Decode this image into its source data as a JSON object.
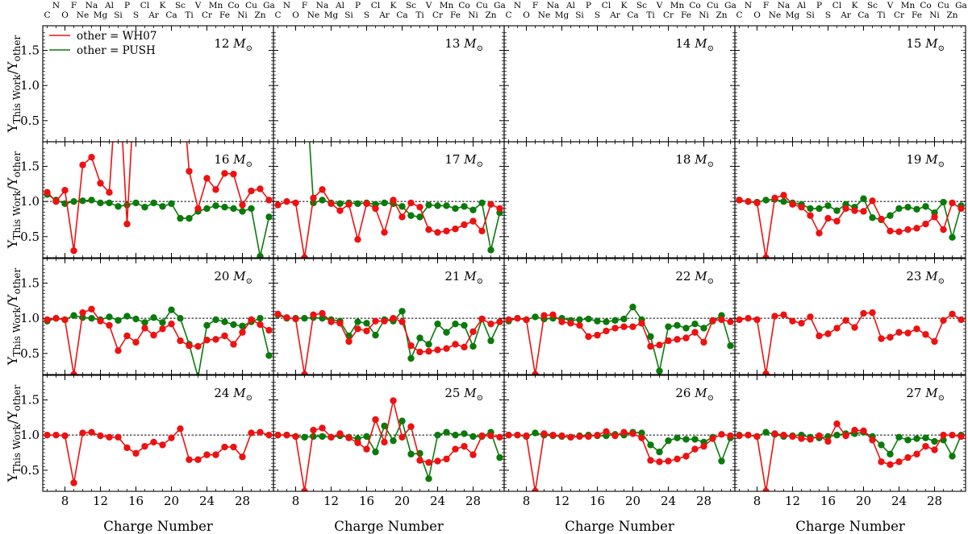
{
  "chart_data": {
    "type": "line",
    "xlabel": "Charge Number",
    "ylabel": "Y_This Work / Y_other",
    "xlim": [
      5.5,
      31.5
    ],
    "ylim": [
      0.2,
      1.85
    ],
    "xticks": [
      8,
      12,
      16,
      20,
      24,
      28
    ],
    "yticks": [
      0.5,
      1.0,
      1.5
    ],
    "xtick_labels": [
      "8",
      "12",
      "16",
      "20",
      "24",
      "28"
    ],
    "ytick_labels": [
      "0.5",
      "1.0",
      "1.5"
    ],
    "reference_line": 1.0,
    "elements_even": [
      "C",
      "O",
      "Ne",
      "Mg",
      "Si",
      "S",
      "Ar",
      "Ca",
      "Ti",
      "Cr",
      "Fe",
      "Ni",
      "Zn"
    ],
    "elements_odd": [
      "N",
      "F",
      "Na",
      "Al",
      "P",
      "Cl",
      "K",
      "Sc",
      "V",
      "Mn",
      "Co",
      "Cu",
      "Ga"
    ],
    "legend": {
      "position": "top-left of first panel",
      "entries": [
        {
          "label": "other = WH07",
          "color": "#ee1111"
        },
        {
          "label": "other = PUSH",
          "color": "#0a7a0a"
        }
      ]
    },
    "colors": {
      "WH07": "#ee1111",
      "PUSH": "#0a7a0a"
    },
    "z": [
      6,
      7,
      8,
      9,
      10,
      11,
      12,
      13,
      14,
      15,
      16,
      17,
      18,
      19,
      20,
      21,
      22,
      23,
      24,
      25,
      26,
      27,
      28,
      29,
      30,
      31
    ],
    "panels": [
      {
        "label": "12",
        "unit": "M_⊙",
        "wh07": [],
        "push": []
      },
      {
        "label": "13",
        "unit": "M_⊙",
        "wh07": [],
        "push": []
      },
      {
        "label": "14",
        "unit": "M_⊙",
        "wh07": [],
        "push": []
      },
      {
        "label": "15",
        "unit": "M_⊙",
        "wh07": [],
        "push": []
      },
      {
        "label": "16",
        "unit": "M_⊙",
        "wh07": [
          1.13,
          1.0,
          1.16,
          0.3,
          1.52,
          1.63,
          1.26,
          1.13,
          3.0,
          0.68,
          3.0,
          null,
          null,
          null,
          null,
          3.0,
          1.43,
          0.9,
          1.33,
          1.17,
          1.4,
          1.39,
          0.95,
          1.15,
          1.18,
          1.02
        ],
        "push": [
          1.1,
          1.02,
          0.97,
          1.0,
          1.01,
          1.02,
          0.98,
          0.98,
          0.93,
          0.95,
          0.98,
          0.92,
          0.98,
          0.93,
          0.97,
          0.76,
          0.76,
          0.86,
          0.9,
          0.94,
          0.92,
          0.9,
          0.86,
          0.9,
          0.22,
          0.78
        ]
      },
      {
        "label": "17",
        "unit": "M_⊙",
        "wh07": [
          0.95,
          1.0,
          0.98,
          0.2,
          1.05,
          1.17,
          0.97,
          0.87,
          0.96,
          0.46,
          0.97,
          0.9,
          0.56,
          1.02,
          0.78,
          0.98,
          0.92,
          0.6,
          0.56,
          0.58,
          0.61,
          0.67,
          0.72,
          0.58,
          0.96,
          0.9
        ],
        "push": [
          null,
          null,
          null,
          3.0,
          0.98,
          1.02,
          0.98,
          0.97,
          0.98,
          0.97,
          0.98,
          0.96,
          0.98,
          0.97,
          0.93,
          0.8,
          0.78,
          0.95,
          0.94,
          0.94,
          0.9,
          0.93,
          0.88,
          0.98,
          0.31,
          0.84
        ]
      },
      {
        "label": "18",
        "unit": "M_⊙",
        "wh07": [],
        "push": []
      },
      {
        "label": "19",
        "unit": "M_⊙",
        "wh07": [
          1.02,
          1.0,
          0.98,
          0.2,
          1.05,
          1.09,
          0.96,
          0.92,
          0.8,
          0.55,
          0.76,
          0.72,
          0.9,
          0.87,
          0.86,
          1.01,
          0.75,
          0.58,
          0.57,
          0.6,
          0.62,
          0.68,
          0.78,
          0.6,
          0.98,
          0.9
        ],
        "push": [
          1.02,
          1.0,
          0.99,
          1.02,
          1.03,
          1.0,
          0.98,
          0.96,
          0.9,
          0.9,
          0.94,
          0.87,
          0.96,
          0.92,
          1.04,
          0.77,
          0.74,
          0.8,
          0.9,
          0.92,
          0.89,
          0.93,
          0.84,
          0.99,
          0.49,
          0.94
        ]
      },
      {
        "label": "20",
        "unit": "M_⊙",
        "wh07": [
          0.98,
          1.0,
          0.98,
          0.2,
          1.08,
          1.13,
          0.96,
          0.9,
          0.54,
          0.75,
          0.66,
          0.86,
          0.76,
          0.85,
          0.92,
          0.68,
          0.61,
          0.6,
          0.69,
          0.7,
          0.75,
          0.63,
          0.8,
          0.98,
          0.91,
          0.83
        ],
        "push": [
          0.96,
          1.0,
          0.98,
          1.04,
          1.01,
          1.0,
          0.98,
          1.02,
          0.97,
          1.03,
          0.99,
          0.94,
          1.01,
          0.94,
          1.12,
          1.0,
          0.63,
          0.16,
          0.9,
          0.98,
          0.95,
          0.91,
          0.89,
          0.95,
          1.0,
          0.47
        ]
      },
      {
        "label": "21",
        "unit": "M_⊙",
        "wh07": [
          1.06,
          1.01,
          0.99,
          0.2,
          1.05,
          1.07,
          0.95,
          0.93,
          0.67,
          0.85,
          0.82,
          0.96,
          0.96,
          1.0,
          0.95,
          0.61,
          0.52,
          0.53,
          0.55,
          0.57,
          0.63,
          0.59,
          0.81,
          0.99,
          0.92,
          0.95
        ],
        "push": [
          1.05,
          1.0,
          1.0,
          1.0,
          1.01,
          1.0,
          0.98,
          0.96,
          0.75,
          0.95,
          0.93,
          0.76,
          0.98,
          0.96,
          1.1,
          0.43,
          0.72,
          0.63,
          0.92,
          0.8,
          0.92,
          0.9,
          0.6,
          0.99,
          0.68,
          0.95
        ]
      },
      {
        "label": "22",
        "unit": "M_⊙",
        "wh07": [
          0.98,
          1.0,
          0.98,
          0.2,
          1.04,
          1.05,
          0.95,
          0.93,
          0.9,
          0.74,
          0.76,
          0.82,
          0.86,
          0.88,
          0.88,
          0.93,
          0.6,
          0.62,
          0.68,
          0.7,
          0.72,
          0.8,
          0.66,
          0.97,
          0.98,
          0.95
        ],
        "push": [
          0.96,
          1.0,
          0.98,
          1.02,
          0.99,
          1.0,
          1.0,
          0.97,
          0.98,
          0.99,
          0.96,
          0.95,
          0.97,
          0.99,
          1.16,
          0.98,
          0.74,
          0.25,
          0.88,
          0.9,
          0.86,
          0.92,
          0.86,
          0.96,
          1.04,
          0.61
        ]
      },
      {
        "label": "23",
        "unit": "M_⊙",
        "wh07": [
          0.98,
          1.0,
          0.98,
          0.21,
          1.03,
          1.05,
          0.96,
          0.93,
          1.02,
          0.75,
          0.78,
          0.86,
          0.97,
          0.87,
          1.07,
          1.08,
          0.71,
          0.73,
          0.8,
          0.79,
          0.85,
          0.77,
          0.67,
          0.97,
          1.06,
          0.98
        ],
        "push": []
      },
      {
        "label": "24",
        "unit": "M_⊙",
        "wh07": [
          1.0,
          1.0,
          0.99,
          0.32,
          1.03,
          1.04,
          0.99,
          0.97,
          0.97,
          0.82,
          0.74,
          0.84,
          0.9,
          0.86,
          0.96,
          1.09,
          0.65,
          0.65,
          0.72,
          0.72,
          0.83,
          0.83,
          0.69,
          1.03,
          1.04,
          1.0
        ],
        "push": []
      },
      {
        "label": "25",
        "unit": "M_⊙",
        "wh07": [
          1.0,
          1.0,
          0.98,
          0.2,
          1.07,
          1.1,
          0.97,
          1.02,
          0.96,
          0.89,
          0.8,
          1.22,
          0.9,
          1.49,
          0.97,
          1.12,
          0.64,
          0.61,
          0.63,
          0.66,
          0.8,
          0.84,
          0.72,
          0.99,
          0.99,
          0.97
        ],
        "push": [
          1.0,
          1.0,
          0.98,
          0.97,
          0.98,
          0.98,
          0.97,
          0.99,
          0.97,
          0.95,
          0.98,
          0.76,
          1.13,
          0.92,
          1.2,
          0.73,
          0.74,
          0.38,
          1.0,
          1.04,
          1.0,
          1.02,
          0.98,
          0.98,
          1.04,
          0.68
        ]
      },
      {
        "label": "26",
        "unit": "M_⊙",
        "wh07": [
          1.0,
          1.0,
          0.99,
          0.2,
          1.02,
          1.0,
          0.99,
          0.97,
          0.98,
          0.98,
          1.0,
          1.05,
          0.99,
          1.04,
          1.02,
          0.96,
          0.64,
          0.62,
          0.63,
          0.66,
          0.7,
          0.8,
          0.84,
          0.95,
          1.01,
          0.99
        ],
        "push": [
          1.0,
          1.0,
          0.98,
          1.03,
          1.0,
          0.99,
          0.98,
          0.97,
          0.99,
          1.0,
          0.99,
          0.99,
          1.01,
          1.0,
          1.04,
          1.03,
          0.86,
          0.76,
          0.92,
          0.96,
          0.94,
          0.94,
          0.9,
          0.97,
          0.63,
          0.96
        ]
      },
      {
        "label": "27",
        "unit": "M_⊙",
        "wh07": [
          0.99,
          1.0,
          0.98,
          0.2,
          1.02,
          1.0,
          0.98,
          0.95,
          0.94,
          0.99,
          0.91,
          1.16,
          0.99,
          1.07,
          1.06,
          0.93,
          0.62,
          0.58,
          0.62,
          0.68,
          0.73,
          0.84,
          0.79,
          1.0,
          1.0,
          0.98
        ],
        "push": [
          1.0,
          1.0,
          0.98,
          1.04,
          1.01,
          0.98,
          0.99,
          1.0,
          0.97,
          0.96,
          0.98,
          1.0,
          1.02,
          1.02,
          1.04,
          0.98,
          0.86,
          0.73,
          0.97,
          0.93,
          0.95,
          0.96,
          0.91,
          0.93,
          0.7,
          1.0
        ]
      }
    ]
  }
}
